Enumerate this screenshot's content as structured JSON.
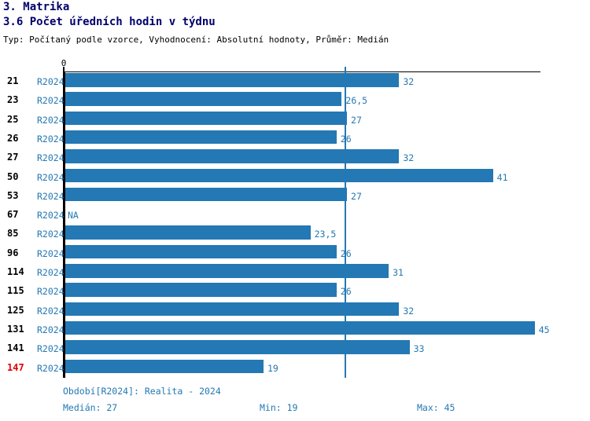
{
  "header": {
    "title": "3. Matrika",
    "subtitle": "3.6 Počet úředních hodin v týdnu",
    "meta": "Typ: Počítaný podle vzorce, Vyhodnocení: Absolutní hodnoty, Průměr: Medián"
  },
  "chart_data": {
    "type": "bar",
    "orientation": "horizontal",
    "axis": {
      "origin_label": "0",
      "min": 0,
      "max": 45.7,
      "median_value": 27,
      "grid": false
    },
    "rows": [
      {
        "id": "21",
        "period": "R2024",
        "value": 32,
        "label": "32",
        "highlight": false
      },
      {
        "id": "23",
        "period": "R2024",
        "value": 26.5,
        "label": "26,5",
        "highlight": false
      },
      {
        "id": "25",
        "period": "R2024",
        "value": 27,
        "label": "27",
        "highlight": false
      },
      {
        "id": "26",
        "period": "R2024",
        "value": 26,
        "label": "26",
        "highlight": false
      },
      {
        "id": "27",
        "period": "R2024",
        "value": 32,
        "label": "32",
        "highlight": false
      },
      {
        "id": "50",
        "period": "R2024",
        "value": 41,
        "label": "41",
        "highlight": false
      },
      {
        "id": "53",
        "period": "R2024",
        "value": 27,
        "label": "27",
        "highlight": false
      },
      {
        "id": "67",
        "period": "R2024",
        "value": null,
        "label": "NA",
        "highlight": false
      },
      {
        "id": "85",
        "period": "R2024",
        "value": 23.5,
        "label": "23,5",
        "highlight": false
      },
      {
        "id": "96",
        "period": "R2024",
        "value": 26,
        "label": "26",
        "highlight": false
      },
      {
        "id": "114",
        "period": "R2024",
        "value": 31,
        "label": "31",
        "highlight": false
      },
      {
        "id": "115",
        "period": "R2024",
        "value": 26,
        "label": "26",
        "highlight": false
      },
      {
        "id": "125",
        "period": "R2024",
        "value": 32,
        "label": "32",
        "highlight": false
      },
      {
        "id": "131",
        "period": "R2024",
        "value": 45,
        "label": "45",
        "highlight": false
      },
      {
        "id": "141",
        "period": "R2024",
        "value": 33,
        "label": "33",
        "highlight": false
      },
      {
        "id": "147",
        "period": "R2024",
        "value": 19,
        "label": "19",
        "highlight": true
      }
    ],
    "colors": {
      "bar": "#2478b4",
      "blue_text": "#2478b4",
      "axis": "#000000",
      "black_text": "#000000",
      "title": "#00006b",
      "highlight_red": "#e00000",
      "median_line": "#2478b4"
    }
  },
  "footer": {
    "period_note": "Období[R2024]: Realita - 2024",
    "median": "Medián: 27",
    "min": "Min: 19",
    "max": "Max: 45"
  }
}
